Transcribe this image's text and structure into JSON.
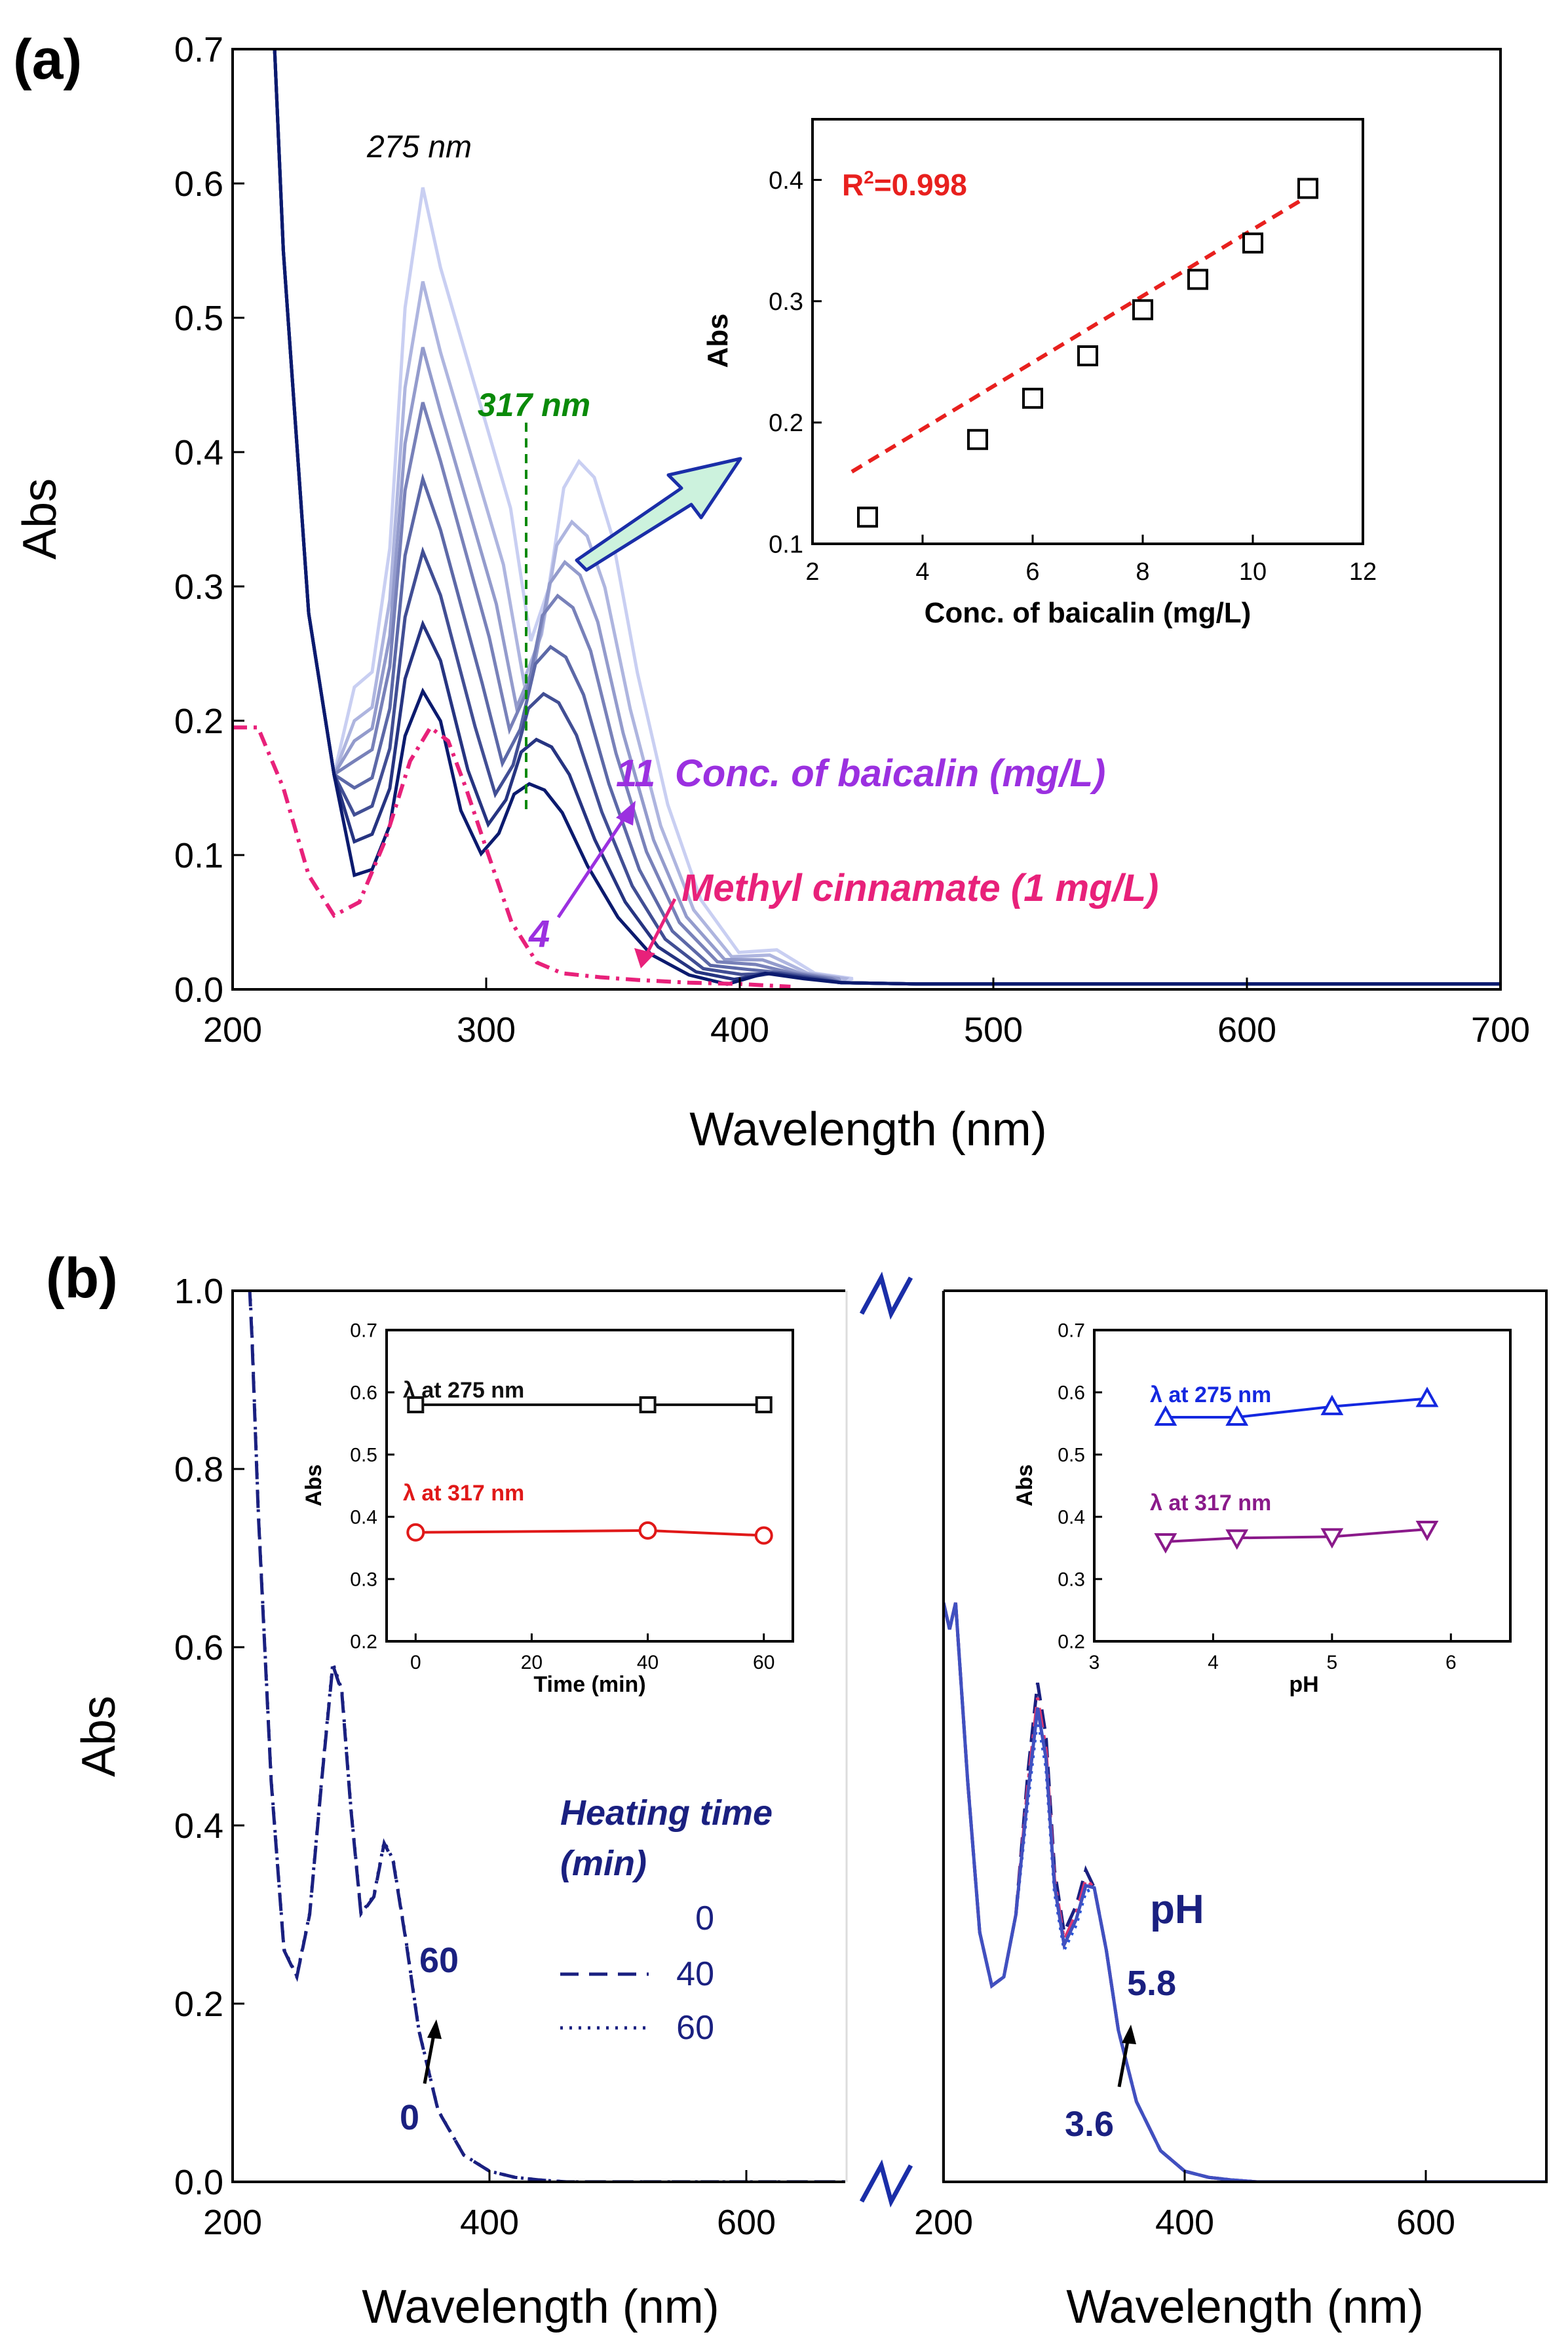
{
  "panels": {
    "a_label": "(a)",
    "b_label": "(b)"
  },
  "chart_data": [
    {
      "id": "a_main",
      "type": "line",
      "xlabel": "Wavelength (nm)",
      "ylabel": "Abs",
      "xlim": [
        200,
        700
      ],
      "ylim": [
        0,
        0.7
      ],
      "xticks": [
        "200",
        "300",
        "400",
        "500",
        "600",
        "700"
      ],
      "yticks": [
        "0.0",
        "0.1",
        "0.2",
        "0.3",
        "0.4",
        "0.5",
        "0.6",
        "0.7"
      ],
      "annotations": {
        "peak_275": "275 nm",
        "peak_317": "317 nm",
        "conc_label": "Conc. of baicalin (mg/L)",
        "conc_high": "11",
        "conc_low": "4",
        "methyl_label": "Methyl cinnamate (1 mg/L)"
      },
      "colors": {
        "baicalin_dark": "#0b1a6e",
        "baicalin_light": "#c9cff2",
        "methyl": "#e8217a",
        "marker_317": "#0a8a0a",
        "conc_text": "#9b30e0",
        "arrow_fill": "#ccf2dd"
      },
      "series": [
        {
          "conc_mg_L": 4,
          "peak_275": 0.222,
          "valley_248": 0.085,
          "peak_317": 0.153
        },
        {
          "conc_mg_L": 5,
          "peak_275": 0.272,
          "valley_248": 0.11,
          "peak_317": 0.186
        },
        {
          "conc_mg_L": 6,
          "peak_275": 0.326,
          "valley_248": 0.13,
          "peak_317": 0.22
        },
        {
          "conc_mg_L": 7,
          "peak_275": 0.38,
          "valley_248": 0.15,
          "peak_317": 0.255
        },
        {
          "conc_mg_L": 8,
          "peak_275": 0.437,
          "valley_248": 0.17,
          "peak_317": 0.293
        },
        {
          "conc_mg_L": 9,
          "peak_275": 0.478,
          "valley_248": 0.185,
          "peak_317": 0.318
        },
        {
          "conc_mg_L": 10,
          "peak_275": 0.527,
          "valley_248": 0.2,
          "peak_317": 0.348
        },
        {
          "conc_mg_L": 11,
          "peak_275": 0.597,
          "valley_248": 0.225,
          "peak_317": 0.393
        }
      ],
      "methyl_cinnamate": {
        "x": [
          200,
          210,
          220,
          230,
          240,
          250,
          260,
          270,
          278,
          285,
          292,
          300,
          310,
          320,
          330,
          345,
          360,
          380,
          400,
          420
        ],
        "y": [
          0.195,
          0.195,
          0.15,
          0.085,
          0.055,
          0.065,
          0.11,
          0.17,
          0.195,
          0.185,
          0.15,
          0.105,
          0.05,
          0.02,
          0.012,
          0.009,
          0.007,
          0.005,
          0.004,
          0.002
        ]
      }
    },
    {
      "id": "a_inset",
      "type": "scatter",
      "xlabel": "Conc. of baicalin (mg/L)",
      "ylabel": "Abs",
      "xlim": [
        2,
        12
      ],
      "ylim": [
        0.1,
        0.45
      ],
      "xticks": [
        "2",
        "4",
        "6",
        "8",
        "10",
        "12"
      ],
      "yticks": [
        "0.1",
        "0.2",
        "0.3",
        "0.4"
      ],
      "r2_prefix": "R",
      "r2_sup": "2",
      "r2_value": "=0.998",
      "x": [
        3,
        5,
        6,
        7,
        8,
        9,
        10,
        11
      ],
      "y": [
        0.122,
        0.186,
        0.22,
        0.255,
        0.293,
        0.318,
        0.348,
        0.393
      ]
    },
    {
      "id": "b_left",
      "type": "line",
      "xlabel": "Wavelength (nm)",
      "ylabel": "Abs",
      "xlim": [
        200,
        700
      ],
      "ylim": [
        0,
        1.0
      ],
      "xticks": [
        "200",
        "400",
        "600"
      ],
      "yticks": [
        "0.0",
        "0.2",
        "0.4",
        "0.6",
        "0.8",
        "1.0"
      ],
      "legend_title_1": "Heating time",
      "legend_title_2": "(min)",
      "series": [
        {
          "name": "0",
          "style": "solid"
        },
        {
          "name": "40",
          "style": "dashed"
        },
        {
          "name": "60",
          "style": "dotted"
        }
      ],
      "arrow_top": "60",
      "arrow_bottom": "0",
      "x": [
        210,
        215,
        220,
        230,
        240,
        250,
        260,
        270,
        278,
        285,
        292,
        300,
        310,
        318,
        325,
        335,
        345,
        360,
        380,
        400,
        420,
        440,
        460,
        500,
        600,
        700
      ],
      "y": [
        1.1,
        0.95,
        0.75,
        0.45,
        0.26,
        0.23,
        0.3,
        0.46,
        0.58,
        0.55,
        0.42,
        0.3,
        0.32,
        0.38,
        0.36,
        0.27,
        0.17,
        0.08,
        0.03,
        0.012,
        0.005,
        0.002,
        0.0,
        0.0,
        0.0,
        0.0
      ]
    },
    {
      "id": "b_left_inset",
      "type": "line",
      "xlabel": "Time (min)",
      "ylabel": "Abs",
      "xlim": [
        -5,
        65
      ],
      "ylim": [
        0.2,
        0.7
      ],
      "xticks": [
        "0",
        "20",
        "40",
        "60"
      ],
      "yticks": [
        "0.2",
        "0.3",
        "0.4",
        "0.5",
        "0.6",
        "0.7"
      ],
      "series": [
        {
          "name": "λ at 275 nm",
          "color": "#111111",
          "marker": "square",
          "x": [
            0,
            40,
            60
          ],
          "y": [
            0.58,
            0.58,
            0.58
          ]
        },
        {
          "name": "λ at 317 nm",
          "color": "#e01818",
          "marker": "circle",
          "x": [
            0,
            40,
            60
          ],
          "y": [
            0.375,
            0.378,
            0.37
          ]
        }
      ]
    },
    {
      "id": "b_right",
      "type": "line",
      "xlabel": "Wavelength (nm)",
      "ylabel": "",
      "xlim": [
        200,
        700
      ],
      "ylim": [
        0,
        1.0
      ],
      "xticks": [
        "200",
        "400",
        "600"
      ],
      "label_ph": "pH",
      "arrow_top": "5.8",
      "arrow_bottom": "3.6",
      "x": [
        200,
        205,
        210,
        215,
        220,
        230,
        240,
        250,
        260,
        270,
        278,
        285,
        292,
        300,
        310,
        318,
        325,
        335,
        345,
        360,
        380,
        400,
        420,
        440,
        460,
        500,
        600,
        700
      ],
      "y": [
        0.65,
        0.62,
        0.65,
        0.55,
        0.45,
        0.28,
        0.22,
        0.23,
        0.3,
        0.46,
        0.56,
        0.5,
        0.35,
        0.28,
        0.31,
        0.35,
        0.33,
        0.26,
        0.17,
        0.09,
        0.035,
        0.012,
        0.005,
        0.002,
        0.0,
        0.0,
        0.0,
        0.0
      ]
    },
    {
      "id": "b_right_inset",
      "type": "line",
      "xlabel": "pH",
      "ylabel": "Abs",
      "xlim": [
        3,
        6.5
      ],
      "ylim": [
        0.2,
        0.7
      ],
      "xticks": [
        "3",
        "4",
        "5",
        "6"
      ],
      "yticks": [
        "0.2",
        "0.3",
        "0.4",
        "0.5",
        "0.6",
        "0.7"
      ],
      "series": [
        {
          "name": "λ at 275 nm",
          "color": "#1428e0",
          "marker": "triangle-up",
          "x": [
            3.6,
            4.2,
            5.0,
            5.8
          ],
          "y": [
            0.56,
            0.56,
            0.577,
            0.59
          ]
        },
        {
          "name": "λ at 317 nm",
          "color": "#8a1a8a",
          "marker": "triangle-down",
          "x": [
            3.6,
            4.2,
            5.0,
            5.8
          ],
          "y": [
            0.36,
            0.366,
            0.368,
            0.38
          ]
        }
      ]
    }
  ]
}
